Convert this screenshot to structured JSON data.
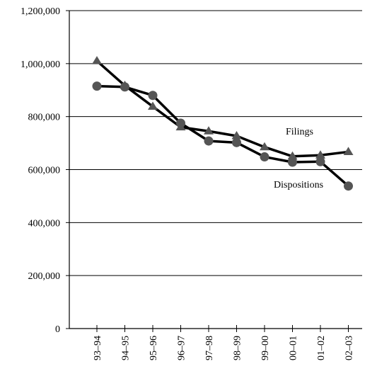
{
  "chart_data": {
    "type": "line",
    "title": "",
    "xlabel": "",
    "ylabel": "",
    "categories": [
      "93–94",
      "94–95",
      "95–96",
      "96–97",
      "97–98",
      "98–99",
      "99–00",
      "00–01",
      "01–02",
      "02–03"
    ],
    "ylim": [
      0,
      1200000
    ],
    "yticks": [
      0,
      200000,
      400000,
      600000,
      800000,
      1000000,
      1200000
    ],
    "ytick_labels": [
      "0",
      "200,000",
      "400,000",
      "600,000",
      "800,000",
      "1,000,000",
      "1,200,000"
    ],
    "grid": "horizontal",
    "legend": "none",
    "series": [
      {
        "name": "Filings",
        "marker": "triangle",
        "color": "#555555",
        "values": [
          1010000,
          917000,
          838000,
          760000,
          745000,
          727000,
          685000,
          650000,
          654000,
          667000
        ]
      },
      {
        "name": "Dispositions",
        "marker": "circle",
        "color": "#555555",
        "values": [
          915000,
          912000,
          880000,
          775000,
          708000,
          702000,
          648000,
          628000,
          630000,
          538000
        ]
      }
    ]
  }
}
